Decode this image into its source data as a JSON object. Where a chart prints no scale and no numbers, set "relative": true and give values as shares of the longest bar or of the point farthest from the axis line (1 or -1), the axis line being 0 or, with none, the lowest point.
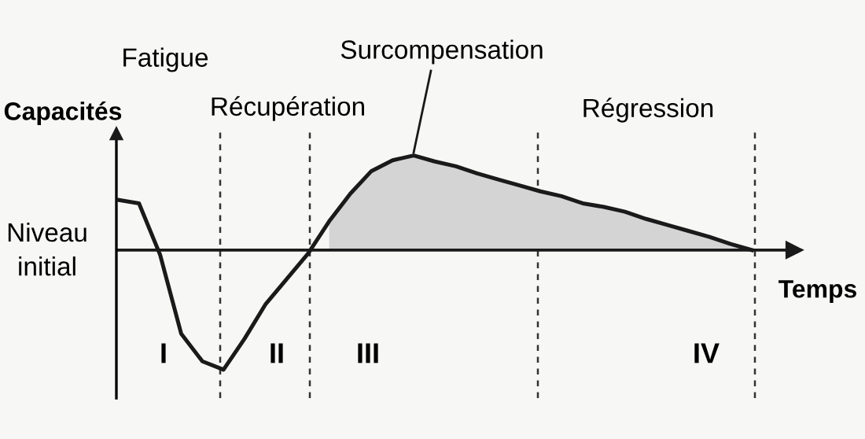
{
  "chart_data": {
    "type": "line",
    "relative": true,
    "xlabel": "Temps",
    "ylabel": "Capacités",
    "categories": [
      null,
      null,
      null,
      null,
      null,
      null,
      null,
      null,
      null,
      null,
      null,
      null,
      null,
      null,
      null,
      null,
      null,
      null,
      null,
      null,
      null,
      null,
      null,
      null,
      null,
      null,
      null,
      null,
      null,
      null,
      null
    ],
    "series": [
      {
        "type": "area",
        "color": "#d4d4d4",
        "values": [
          null,
          null,
          null,
          null,
          null,
          null,
          null,
          null,
          null,
          null,
          0.24,
          0.47,
          0.66,
          0.75,
          0.79,
          0.74,
          0.7,
          0.64,
          0.59,
          0.54,
          0.49,
          0.45,
          0.39,
          0.36,
          0.32,
          0.26,
          0.21,
          0.16,
          0.11,
          0.05,
          0
        ]
      },
      {
        "color": "#1a1a1a",
        "values": [
          0.42,
          0.39,
          -0.04,
          -0.7,
          -0.93,
          -1,
          -0.74,
          -0.45,
          -0.24,
          -0.03,
          0.24,
          0.47,
          0.66,
          0.75,
          0.79,
          0.74,
          0.7,
          0.64,
          0.59,
          0.54,
          0.49,
          0.45,
          0.39,
          0.36,
          0.32,
          0.26,
          0.21,
          0.16,
          0.11,
          0.05,
          0
        ]
      }
    ],
    "annotations": [
      "Fatigue",
      "Récupération",
      "Surcompensation",
      "Régression",
      "Niveau\ninitial",
      "I",
      "II",
      "III",
      "IV"
    ]
  }
}
